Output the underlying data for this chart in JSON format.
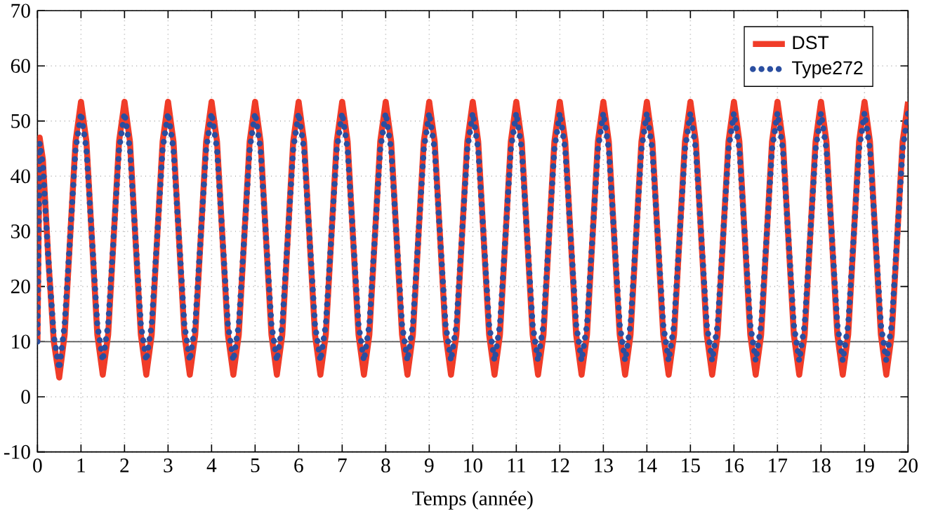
{
  "chart_data": {
    "type": "line",
    "xlabel": "Temps (année)",
    "x": [
      0,
      0.05,
      0.125,
      0.25,
      0.375,
      0.5,
      0.625,
      0.75,
      0.875,
      1,
      1.125,
      1.25,
      1.375,
      1.5,
      1.625,
      1.75,
      1.875,
      2,
      2.125,
      2.25,
      2.375,
      2.5,
      2.625,
      2.75,
      2.875,
      3,
      3.125,
      3.25,
      3.375,
      3.5,
      3.625,
      3.75,
      3.875,
      4,
      4.125,
      4.25,
      4.375,
      4.5,
      4.625,
      4.75,
      4.875,
      5,
      5.125,
      5.25,
      5.375,
      5.5,
      5.625,
      5.75,
      5.875,
      6,
      6.125,
      6.25,
      6.375,
      6.5,
      6.625,
      6.75,
      6.875,
      7,
      7.125,
      7.25,
      7.375,
      7.5,
      7.625,
      7.75,
      7.875,
      8,
      8.125,
      8.25,
      8.375,
      8.5,
      8.625,
      8.75,
      8.875,
      9,
      9.125,
      9.25,
      9.375,
      9.5,
      9.625,
      9.75,
      9.875,
      10,
      10.125,
      10.25,
      10.375,
      10.5,
      10.625,
      10.75,
      10.875,
      11,
      11.125,
      11.25,
      11.375,
      11.5,
      11.625,
      11.75,
      11.875,
      12,
      12.125,
      12.25,
      12.375,
      12.5,
      12.625,
      12.75,
      12.875,
      13,
      13.125,
      13.25,
      13.375,
      13.5,
      13.625,
      13.75,
      13.875,
      14,
      14.125,
      14.25,
      14.375,
      14.5,
      14.625,
      14.75,
      14.875,
      15,
      15.125,
      15.25,
      15.375,
      15.5,
      15.625,
      15.75,
      15.875,
      16,
      16.125,
      16.25,
      16.375,
      16.5,
      16.625,
      16.75,
      16.875,
      17,
      17.125,
      17.25,
      17.375,
      17.5,
      17.625,
      17.75,
      17.875,
      18,
      18.125,
      18.25,
      18.375,
      18.5,
      18.625,
      18.75,
      18.875,
      19,
      19.125,
      19.25,
      19.375,
      19.5,
      19.625,
      19.75,
      19.875,
      20
    ],
    "series": [
      {
        "name": "DST",
        "color": "#f03c28",
        "line_style": "solid",
        "values": [
          10,
          47,
          43,
          25,
          10,
          3.5,
          11.3,
          28.8,
          46.3,
          53.5,
          46.3,
          28.8,
          11.3,
          4,
          11.3,
          28.8,
          46.3,
          53.5,
          46.3,
          28.8,
          11.3,
          4,
          11.3,
          28.8,
          46.3,
          53.5,
          46.3,
          28.8,
          11.3,
          4,
          11.3,
          28.8,
          46.3,
          53.5,
          46.3,
          28.8,
          11.3,
          4,
          11.3,
          28.8,
          46.3,
          53.5,
          46.3,
          28.8,
          11.3,
          4,
          11.3,
          28.8,
          46.3,
          53.5,
          46.3,
          28.8,
          11.3,
          4,
          11.3,
          28.8,
          46.3,
          53.5,
          46.3,
          28.8,
          11.3,
          4,
          11.3,
          28.8,
          46.3,
          53.5,
          46.3,
          28.8,
          11.3,
          4,
          11.3,
          28.8,
          46.3,
          53.5,
          46.3,
          28.8,
          11.3,
          4,
          11.3,
          28.8,
          46.3,
          53.5,
          46.3,
          28.8,
          11.3,
          4,
          11.3,
          28.8,
          46.3,
          53.5,
          46.3,
          28.8,
          11.3,
          4,
          11.3,
          28.8,
          46.3,
          53.5,
          46.3,
          28.8,
          11.3,
          4,
          11.3,
          28.8,
          46.3,
          53.5,
          46.3,
          28.8,
          11.3,
          4,
          11.3,
          28.8,
          46.3,
          53.5,
          46.3,
          28.8,
          11.3,
          4,
          11.3,
          28.8,
          46.3,
          53.5,
          46.3,
          28.8,
          11.3,
          4,
          11.3,
          28.8,
          46.3,
          53.5,
          46.3,
          28.8,
          11.3,
          4,
          11.3,
          28.8,
          46.3,
          53.5,
          46.3,
          28.8,
          11.3,
          4,
          11.3,
          28.8,
          46.3,
          53.5,
          46.3,
          28.8,
          11.3,
          4,
          11.3,
          28.8,
          46.3,
          53.5,
          46.3,
          28.8,
          11.3,
          4,
          11.3,
          28.8,
          46.3,
          53.5
        ]
      },
      {
        "name": "Type272",
        "color": "#2a4ea0",
        "line_style": "dotted",
        "values": [
          10,
          46,
          42,
          25,
          11,
          5,
          13.1,
          29,
          44.9,
          51.5,
          44.9,
          29,
          13.1,
          6.5,
          13.1,
          29,
          44.9,
          51.5,
          44.9,
          29,
          13.1,
          6.5,
          13.1,
          29,
          44.9,
          51.5,
          44.9,
          29,
          13.1,
          6.5,
          13.1,
          29,
          44.9,
          51.5,
          44.9,
          29,
          13.1,
          6.5,
          13.1,
          29,
          44.9,
          51.5,
          44.9,
          29,
          13.1,
          6.5,
          13.1,
          29,
          44.9,
          51.5,
          44.9,
          29,
          13.1,
          6.5,
          13.1,
          29,
          44.9,
          51.5,
          44.9,
          29,
          13.1,
          6.5,
          13.1,
          29,
          44.9,
          51.5,
          44.9,
          29,
          13.1,
          6.5,
          13.1,
          29,
          44.9,
          51.5,
          44.9,
          29,
          13.1,
          6.5,
          13.1,
          29,
          44.9,
          51.5,
          44.9,
          29,
          13.1,
          6.5,
          13.1,
          29,
          44.9,
          51.5,
          44.9,
          29,
          13.1,
          6.5,
          13.1,
          29,
          44.9,
          51.5,
          44.9,
          29,
          13.1,
          6.5,
          13.1,
          29,
          44.9,
          51.5,
          44.9,
          29,
          13.1,
          6.5,
          13.1,
          29,
          44.9,
          51.5,
          44.9,
          29,
          13.1,
          6.5,
          13.1,
          29,
          44.9,
          51.5,
          44.9,
          29,
          13.1,
          6.5,
          13.1,
          29,
          44.9,
          51.5,
          44.9,
          29,
          13.1,
          6.5,
          13.1,
          29,
          44.9,
          51.5,
          44.9,
          29,
          13.1,
          6.5,
          13.1,
          29,
          44.9,
          51.5,
          44.9,
          29,
          13.1,
          6.5,
          13.1,
          29,
          44.9,
          51.5,
          44.9,
          29,
          13.1,
          6.5,
          13.1,
          29,
          44.9,
          51.5
        ]
      }
    ],
    "xlim": [
      0,
      20
    ],
    "xticks": [
      0,
      1,
      2,
      3,
      4,
      5,
      6,
      7,
      8,
      9,
      10,
      11,
      12,
      13,
      14,
      15,
      16,
      17,
      18,
      19,
      20
    ],
    "ylim": [
      -10,
      70
    ],
    "yticks": [
      -10,
      0,
      10,
      20,
      30,
      40,
      50,
      60,
      70
    ],
    "ref_lines": [
      {
        "axis": "y",
        "value": 10,
        "color": "#555555",
        "line_style": "solid"
      }
    ],
    "grid": true,
    "legend": "top right",
    "marker": "none"
  }
}
